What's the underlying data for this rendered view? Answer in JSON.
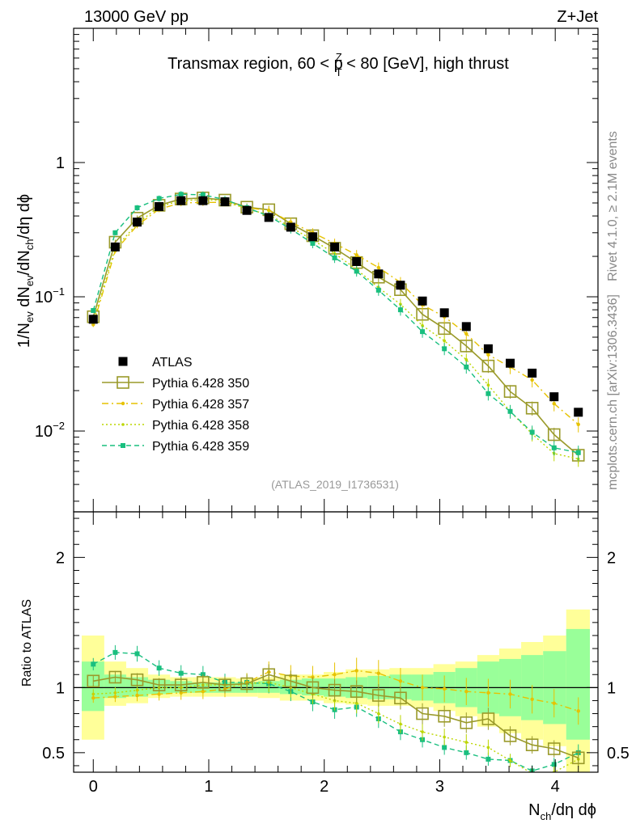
{
  "header": {
    "left": "13000 GeV pp",
    "right": "Z+Jet"
  },
  "side_labels": {
    "rivet": "Rivet 4.1.0, ≥ 2.1M events",
    "mcplots": "mcplots.cern.ch [arXiv:1306.3436]"
  },
  "colors": {
    "data": "#000000",
    "p350": "#9a9a2a",
    "p357": "#e6c200",
    "p358": "#bcd600",
    "p359": "#19bf7f",
    "band_yellow": "#ffff99",
    "band_green": "#99ff99"
  },
  "chart_data": [
    {
      "type": "scatter",
      "title": "Transmax region, 60 < p",
      "title_sup": "Z",
      "title_sub": "T",
      "title_rest": " < 80 [GeV], high thrust",
      "ylabel": "1/N",
      "ylabel_parts": [
        "1/N",
        "ev",
        " dN",
        "ev",
        "/dN",
        "ch",
        "/dη dϕ"
      ],
      "yscale": "log",
      "ylim": [
        0.0025,
        10
      ],
      "xlim": [
        -0.17,
        4.37
      ],
      "yticks": [
        {
          "v": 0.01,
          "base": "10",
          "exp": "−2"
        },
        {
          "v": 0.1,
          "base": "10",
          "exp": "−1"
        },
        {
          "v": 1,
          "base": "1",
          "exp": ""
        }
      ],
      "watermark": "(ATLAS_2019_I1736531)",
      "x": [
        0.0,
        0.19,
        0.38,
        0.57,
        0.76,
        0.95,
        1.14,
        1.33,
        1.52,
        1.71,
        1.9,
        2.09,
        2.28,
        2.47,
        2.66,
        2.85,
        3.04,
        3.23,
        3.42,
        3.61,
        3.8,
        3.99,
        4.2
      ],
      "series": [
        {
          "name": "ATLAS",
          "style": "data",
          "values": [
            0.068,
            0.235,
            0.36,
            0.47,
            0.52,
            0.52,
            0.51,
            0.44,
            0.39,
            0.33,
            0.28,
            0.235,
            0.183,
            0.148,
            0.122,
            0.093,
            0.076,
            0.06,
            0.041,
            0.032,
            0.027,
            0.018,
            0.0138
          ]
        },
        {
          "name": "Pythia 6.428 350",
          "style": "p350",
          "values": [
            0.071,
            0.255,
            0.385,
            0.48,
            0.535,
            0.545,
            0.525,
            0.465,
            0.445,
            0.35,
            0.285,
            0.23,
            0.18,
            0.14,
            0.113,
            0.074,
            0.058,
            0.043,
            0.0305,
            0.0197,
            0.0148,
            0.0094,
            0.0066
          ]
        },
        {
          "name": "Pythia 6.428 357",
          "style": "p357",
          "values": [
            0.062,
            0.22,
            0.34,
            0.45,
            0.5,
            0.505,
            0.505,
            0.46,
            0.44,
            0.36,
            0.3,
            0.25,
            0.205,
            0.165,
            0.128,
            0.087,
            0.071,
            0.053,
            0.037,
            0.03,
            0.024,
            0.016,
            0.0112
          ]
        },
        {
          "name": "Pythia 6.428 358",
          "style": "p358",
          "values": [
            0.065,
            0.23,
            0.35,
            0.47,
            0.52,
            0.53,
            0.52,
            0.45,
            0.41,
            0.33,
            0.265,
            0.21,
            0.16,
            0.117,
            0.088,
            0.061,
            0.047,
            0.034,
            0.022,
            0.014,
            0.0095,
            0.0068,
            0.0062
          ]
        },
        {
          "name": "Pythia 6.428 359",
          "style": "p359",
          "values": [
            0.079,
            0.3,
            0.46,
            0.54,
            0.58,
            0.575,
            0.53,
            0.46,
            0.4,
            0.32,
            0.25,
            0.195,
            0.155,
            0.112,
            0.08,
            0.055,
            0.041,
            0.03,
            0.019,
            0.014,
            0.0098,
            0.0075,
            0.0069
          ]
        }
      ]
    },
    {
      "type": "scatter",
      "ylabel": "Ratio to ATLAS",
      "xlabel_base": "N",
      "xlabel_sub": "ch",
      "xlabel_rest": "/dη dϕ",
      "ylim": [
        0.35,
        2.35
      ],
      "xlim": [
        -0.17,
        4.37
      ],
      "xticks": [
        "0",
        "1",
        "2",
        "3",
        "4"
      ],
      "yticks": [
        "0.5",
        "1",
        "2"
      ],
      "reference_line": 1,
      "band_yellow": [
        [
          0.6,
          1.4
        ],
        [
          0.86,
          1.2
        ],
        [
          0.88,
          1.15
        ],
        [
          0.92,
          1.1
        ],
        [
          0.93,
          1.08
        ],
        [
          0.93,
          1.08
        ],
        [
          0.93,
          1.08
        ],
        [
          0.93,
          1.07
        ],
        [
          0.92,
          1.08
        ],
        [
          0.9,
          1.1
        ],
        [
          0.9,
          1.1
        ],
        [
          0.88,
          1.12
        ],
        [
          0.87,
          1.14
        ],
        [
          0.86,
          1.14
        ],
        [
          0.86,
          1.15
        ],
        [
          0.85,
          1.15
        ],
        [
          0.82,
          1.18
        ],
        [
          0.78,
          1.2
        ],
        [
          0.7,
          1.25
        ],
        [
          0.65,
          1.3
        ],
        [
          0.6,
          1.35
        ],
        [
          0.55,
          1.4
        ],
        [
          0.35,
          1.6
        ]
      ],
      "band_green": [
        [
          0.82,
          1.2
        ],
        [
          0.92,
          1.1
        ],
        [
          0.93,
          1.08
        ],
        [
          0.95,
          1.06
        ],
        [
          0.96,
          1.05
        ],
        [
          0.96,
          1.04
        ],
        [
          0.96,
          1.04
        ],
        [
          0.96,
          1.04
        ],
        [
          0.96,
          1.05
        ],
        [
          0.95,
          1.06
        ],
        [
          0.94,
          1.07
        ],
        [
          0.93,
          1.07
        ],
        [
          0.92,
          1.08
        ],
        [
          0.91,
          1.09
        ],
        [
          0.91,
          1.1
        ],
        [
          0.9,
          1.1
        ],
        [
          0.88,
          1.12
        ],
        [
          0.85,
          1.15
        ],
        [
          0.8,
          1.2
        ],
        [
          0.78,
          1.22
        ],
        [
          0.75,
          1.25
        ],
        [
          0.72,
          1.28
        ],
        [
          0.6,
          1.45
        ]
      ],
      "series": [
        {
          "name": "Pythia 6.428 350",
          "style": "p350",
          "values": [
            1.05,
            1.08,
            1.06,
            1.02,
            1.02,
            1.04,
            1.02,
            1.03,
            1.1,
            1.05,
            1.0,
            0.98,
            0.97,
            0.94,
            0.92,
            0.8,
            0.78,
            0.73,
            0.76,
            0.63,
            0.56,
            0.53,
            0.46
          ]
        },
        {
          "name": "Pythia 6.428 357",
          "style": "p357",
          "values": [
            0.92,
            0.93,
            0.94,
            0.95,
            0.96,
            0.97,
            0.99,
            1.04,
            1.12,
            1.09,
            1.08,
            1.1,
            1.13,
            1.11,
            1.05,
            1.0,
            0.99,
            0.97,
            0.96,
            0.95,
            0.91,
            0.88,
            0.82
          ]
        },
        {
          "name": "Pythia 6.428 358",
          "style": "p358",
          "values": [
            0.95,
            0.96,
            0.98,
            1.0,
            1.0,
            1.02,
            1.02,
            1.03,
            1.04,
            1.0,
            0.95,
            0.9,
            0.88,
            0.8,
            0.72,
            0.66,
            0.62,
            0.58,
            0.54,
            0.44,
            0.34,
            0.35,
            0.45
          ]
        },
        {
          "name": "Pythia 6.428 359",
          "style": "p359",
          "values": [
            1.18,
            1.27,
            1.26,
            1.15,
            1.11,
            1.1,
            1.04,
            1.04,
            1.03,
            0.97,
            0.89,
            0.83,
            0.85,
            0.76,
            0.66,
            0.6,
            0.54,
            0.5,
            0.45,
            0.44,
            0.36,
            0.41,
            0.5
          ]
        }
      ]
    }
  ]
}
